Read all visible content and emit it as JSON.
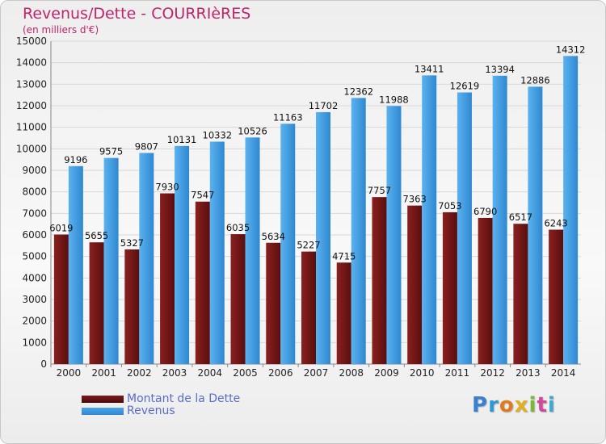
{
  "title": "Revenus/Dette - COURRIèRES",
  "subtitle": "(en milliers d'€)",
  "colors": {
    "debt": "#7b1a1a",
    "revenue": "#4aa3e8",
    "title": "#c0246a",
    "legend_text": "#5a6cc8"
  },
  "logo": {
    "letters": [
      "P",
      "r",
      "o",
      "x",
      "i",
      "t",
      "i"
    ],
    "letter_colors": [
      "#3b7fd0",
      "#2a9bd8",
      "#e07a20",
      "#e0b020",
      "#7ab83a",
      "#d04a9a",
      "#40a8d0"
    ]
  },
  "chart_data": {
    "type": "bar",
    "categories": [
      "2000",
      "2001",
      "2002",
      "2003",
      "2004",
      "2005",
      "2006",
      "2007",
      "2008",
      "2009",
      "2010",
      "2011",
      "2012",
      "2013",
      "2014"
    ],
    "series": [
      {
        "name": "Montant de la Dette",
        "color": "#7b1a1a",
        "values": [
          6019,
          5655,
          5327,
          7930,
          7547,
          6035,
          5634,
          5227,
          4715,
          7757,
          7363,
          7053,
          6790,
          6517,
          6243
        ]
      },
      {
        "name": "Revenus",
        "color": "#4aa3e8",
        "values": [
          9196,
          9575,
          9807,
          10131,
          10332,
          10526,
          11163,
          11702,
          12362,
          11988,
          13411,
          12619,
          13394,
          12886,
          14312
        ]
      }
    ],
    "yticks": [
      0,
      1000,
      2000,
      3000,
      4000,
      5000,
      6000,
      7000,
      8000,
      9000,
      10000,
      11000,
      12000,
      13000,
      14000,
      15000
    ],
    "ylim": [
      0,
      15000
    ],
    "grid": true,
    "legend_position": "bottom-left"
  }
}
